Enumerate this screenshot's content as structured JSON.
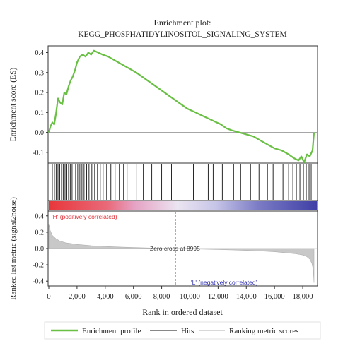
{
  "chart_data": {
    "type": "line",
    "title_line1": "Enrichment plot:",
    "title_line2": "KEGG_PHOSPHATIDYLINOSITOL_SIGNALING_SYSTEM",
    "es_panel": {
      "ylabel": "Enrichment score (ES)",
      "ylim": [
        -0.15,
        0.43
      ],
      "yticks": [
        -0.1,
        0.0,
        0.1,
        0.2,
        0.3,
        0.4
      ],
      "ytick_labels": [
        "-0.1",
        "0.0",
        "0.1",
        "0.2",
        "0.3",
        "0.4"
      ],
      "series": [
        {
          "x": [
            0,
            120,
            250,
            380,
            500,
            650,
            800,
            950,
            1100,
            1250,
            1400,
            1550,
            1700,
            1850,
            2000,
            2200,
            2400,
            2600,
            2800,
            3000,
            3200,
            3500,
            3800,
            4200,
            4700,
            5200,
            5700,
            6200,
            6800,
            7400,
            8000,
            8600,
            9200,
            9800,
            10400,
            11000,
            11600,
            12200,
            12600,
            13000,
            13500,
            14000,
            14500,
            15000,
            15500,
            16000,
            16500,
            17000,
            17400,
            17700,
            17900,
            18100,
            18300,
            18500,
            18700,
            18800
          ],
          "y": [
            0.0,
            0.03,
            0.05,
            0.04,
            0.09,
            0.17,
            0.15,
            0.14,
            0.2,
            0.19,
            0.23,
            0.26,
            0.28,
            0.31,
            0.35,
            0.38,
            0.39,
            0.38,
            0.4,
            0.39,
            0.41,
            0.4,
            0.39,
            0.38,
            0.36,
            0.34,
            0.32,
            0.3,
            0.27,
            0.24,
            0.21,
            0.18,
            0.15,
            0.12,
            0.1,
            0.08,
            0.06,
            0.04,
            0.02,
            0.01,
            0.0,
            -0.01,
            -0.02,
            -0.04,
            -0.06,
            -0.08,
            -0.09,
            -0.11,
            -0.13,
            -0.14,
            -0.12,
            -0.15,
            -0.11,
            -0.12,
            -0.09,
            0.0
          ]
        }
      ]
    },
    "hits_x": [
      250,
      400,
      520,
      650,
      780,
      900,
      1020,
      1150,
      1280,
      1400,
      1520,
      1650,
      1780,
      1900,
      2050,
      2200,
      2350,
      2500,
      2680,
      2850,
      3050,
      3250,
      3450,
      3650,
      3850,
      4100,
      4400,
      4700,
      5000,
      5300,
      5550,
      6200,
      6700,
      7300,
      8000,
      8700,
      9300,
      9800,
      10250,
      11300,
      11650,
      12300,
      13100,
      13600,
      14300,
      14900,
      15500,
      15900,
      16600,
      17000,
      17300,
      17550,
      17800,
      18050,
      18250,
      18450,
      18600
    ],
    "ranked_panel": {
      "ylabel": "Ranked list metric (signal2noise)",
      "ylim": [
        -0.45,
        0.45
      ],
      "yticks": [
        -0.4,
        -0.2,
        0.0,
        0.2,
        0.4
      ],
      "ytick_labels": [
        "-0.4",
        "-0.2",
        "0.0",
        "0.2",
        "0.4"
      ],
      "x": [
        0,
        100,
        250,
        500,
        800,
        1200,
        1600,
        2000,
        3000,
        4000,
        5000,
        6000,
        7000,
        8000,
        9000,
        10000,
        11000,
        12000,
        13000,
        14000,
        15000,
        16000,
        17000,
        17500,
        18000,
        18300,
        18500,
        18650,
        18750,
        18800
      ],
      "y": [
        0.3,
        0.22,
        0.16,
        0.12,
        0.09,
        0.07,
        0.06,
        0.05,
        0.035,
        0.025,
        0.018,
        0.012,
        0.007,
        0.003,
        0.0,
        -0.004,
        -0.008,
        -0.012,
        -0.017,
        -0.023,
        -0.03,
        -0.04,
        -0.055,
        -0.065,
        -0.08,
        -0.1,
        -0.13,
        -0.18,
        -0.26,
        -0.42
      ],
      "zero_cross_label": "Zero cross at 8995",
      "zero_cross_x": 8995,
      "pos_label": "'H' (positively correlated)",
      "neg_label": "'L' (negatively correlated)"
    },
    "xlabel": "Rank in ordered dataset",
    "xlim": [
      0,
      19000
    ],
    "xticks": [
      0,
      2000,
      4000,
      6000,
      8000,
      10000,
      12000,
      14000,
      16000,
      18000
    ],
    "xtick_labels": [
      "0",
      "2,000",
      "4,000",
      "6,000",
      "8,000",
      "10,000",
      "12,000",
      "14,000",
      "16,000",
      "18,000"
    ],
    "legend": {
      "position": "bottom",
      "items": [
        {
          "label": "Enrichment profile",
          "color": "#6abf45"
        },
        {
          "label": "Hits",
          "color": "#888888"
        },
        {
          "label": "Ranking metric scores",
          "color": "#d0d0d0"
        }
      ]
    },
    "colors": {
      "es_line": "#6abf45",
      "hit_line": "#111111",
      "ranked_fill": "#c8c8c8",
      "pos_text": "#e0323a",
      "neg_text": "#3030b0",
      "zero_line": "#9a9a9a",
      "axis": "#333333",
      "bar_red": "#e8363a",
      "bar_white": "#ebe4f1",
      "bar_blue": "#3f3fa6"
    }
  }
}
